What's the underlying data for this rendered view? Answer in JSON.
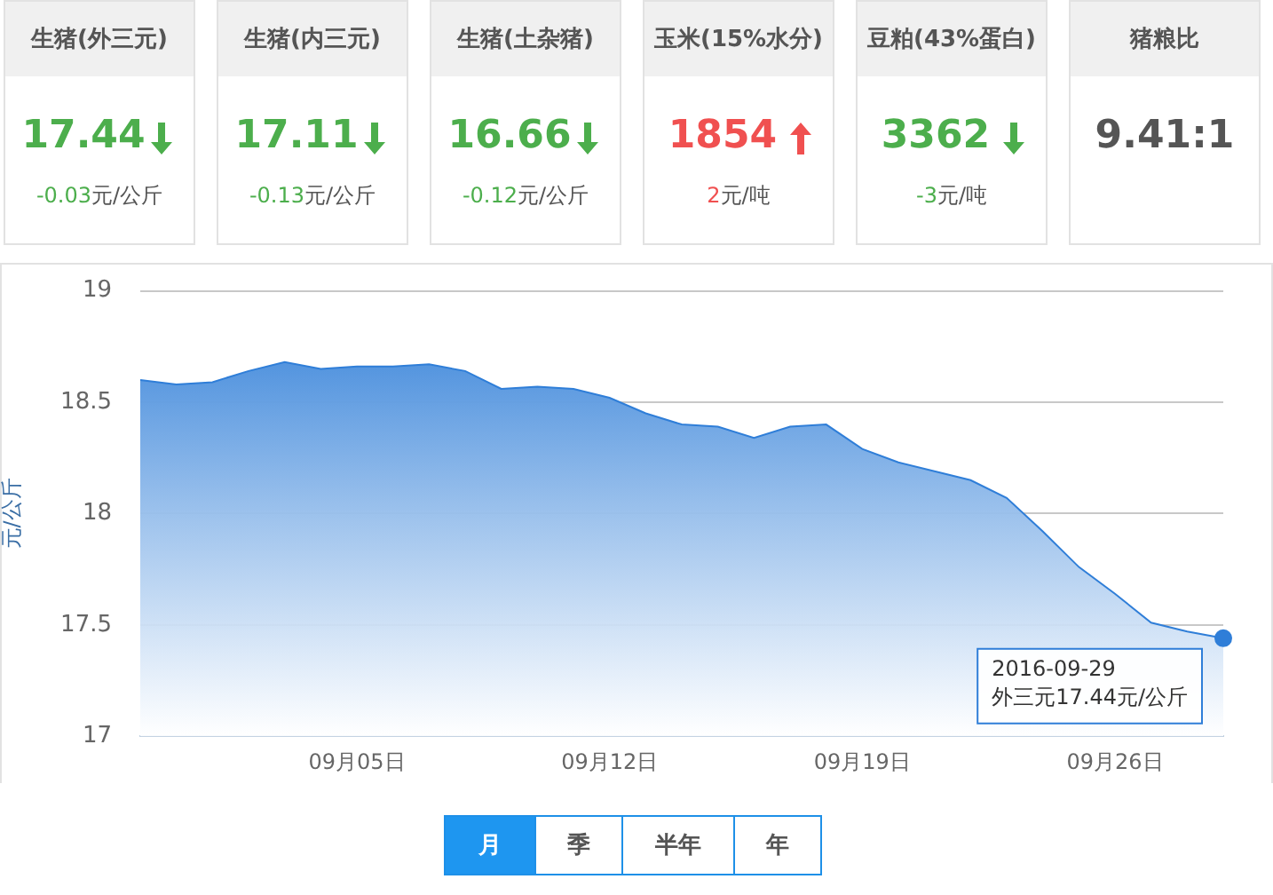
{
  "chart_data": [
    {
      "type": "other",
      "categories": [
        "生猪(外三元)",
        "生猪(内三元)",
        "生猪(土杂猪)",
        "玉米(15%水分)",
        "豆粕(43%蛋白)",
        "猪粮比"
      ],
      "annotations": [
        "17.44",
        "-0.03元/公斤",
        "17.11",
        "-0.13元/公斤",
        "16.66",
        "-0.12元/公斤",
        "1854",
        "2元/吨",
        "3362",
        "-3元/吨",
        "9.41:1"
      ]
    },
    {
      "type": "area",
      "ylabel": "元/公斤",
      "categories": [
        null,
        null,
        null,
        null,
        null,
        null,
        "09月05日",
        null,
        null,
        null,
        null,
        null,
        null,
        "09月12日",
        null,
        null,
        null,
        null,
        null,
        null,
        "09月19日",
        null,
        null,
        null,
        null,
        null,
        null,
        "09月26日",
        null,
        null,
        null
      ],
      "series": [
        {
          "color": "#2f7ed8",
          "values": [
            18.6,
            18.58,
            18.59,
            18.64,
            18.68,
            18.65,
            18.66,
            18.66,
            18.67,
            18.64,
            18.56,
            18.57,
            18.56,
            18.52,
            18.45,
            18.4,
            18.39,
            18.34,
            18.39,
            18.4,
            18.29,
            18.23,
            18.19,
            18.15,
            18.07,
            17.92,
            17.76,
            17.64,
            17.51,
            17.47,
            17.44
          ]
        }
      ],
      "ylim": [
        17,
        19
      ],
      "yticks": [
        17,
        17.5,
        18,
        18.5,
        19
      ],
      "grid": "y",
      "legend": false,
      "annotations": [
        "2016-09-29\n外三元17.44元/公斤",
        "月",
        "季",
        "半年",
        "年"
      ]
    }
  ]
}
